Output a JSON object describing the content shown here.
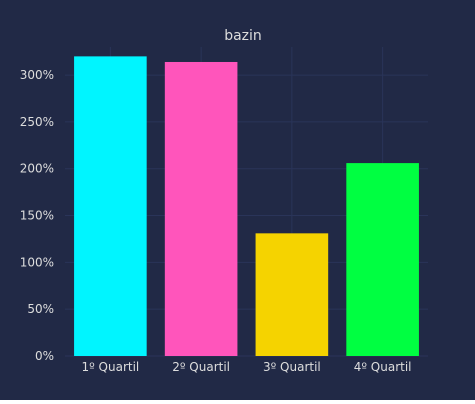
{
  "chart_data": {
    "type": "bar",
    "title": "bazin",
    "categories": [
      "1º Quartil",
      "2º Quartil",
      "3º Quartil",
      "4º Quartil"
    ],
    "values": [
      320,
      314,
      131,
      206
    ],
    "value_unit": "%",
    "ylim": [
      0,
      330
    ],
    "yticks": [
      0,
      50,
      100,
      150,
      200,
      250,
      300
    ],
    "ytick_labels": [
      "0%",
      "50%",
      "100%",
      "150%",
      "200%",
      "250%",
      "300%"
    ],
    "xlabel": "",
    "ylabel": "",
    "grid": true,
    "legend": "none",
    "colors": [
      "#00F5FF",
      "#FF55BB",
      "#F5D300",
      "#00FF41"
    ],
    "background": "#212946",
    "grid_color": "#2A3459",
    "text_color": "#DDDDDD"
  }
}
